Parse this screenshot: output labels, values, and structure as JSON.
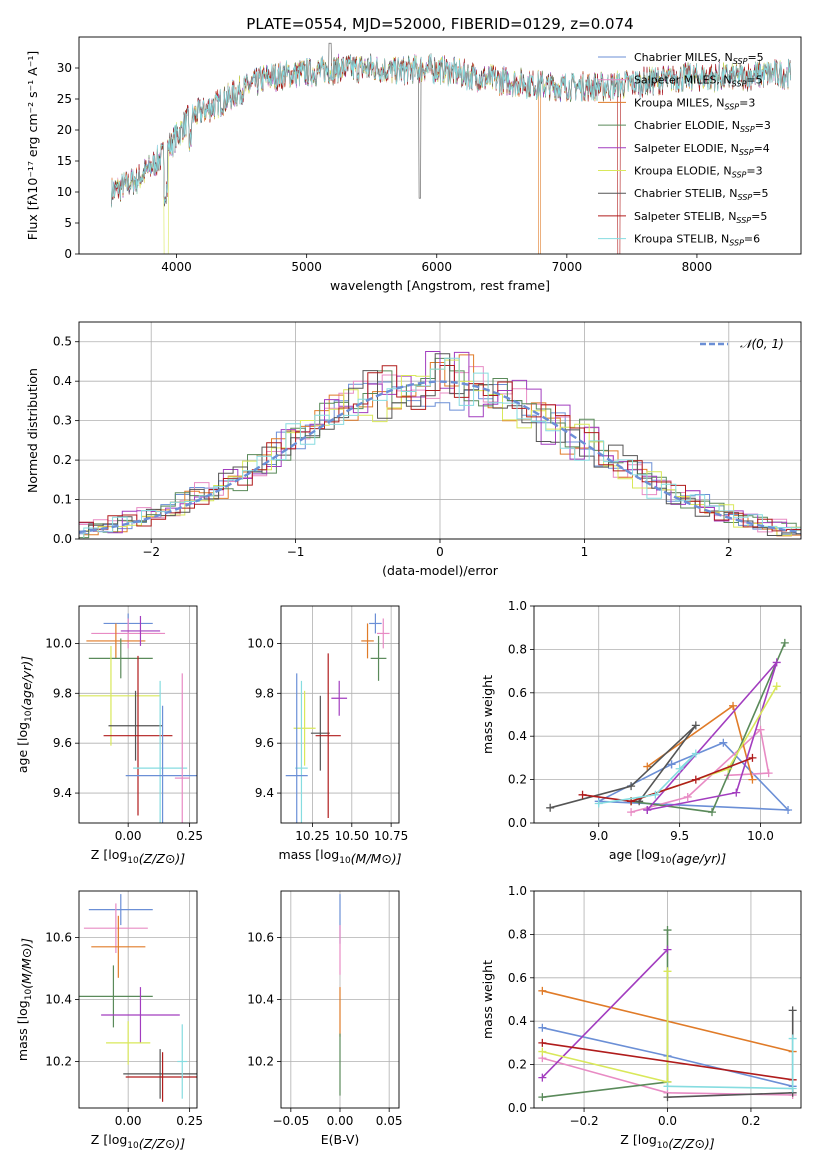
{
  "figure_title": "PLATE=0554, MJD=52000, FIBERID=0129, z=0.074",
  "colors": {
    "Chabrier MILES": "#6b8fd6",
    "Salpeter MILES": "#e88bc4",
    "Kroupa MILES": "#e07b28",
    "Chabrier ELODIE": "#5a8a5a",
    "Salpeter ELODIE": "#a23dbf",
    "Kroupa ELODIE": "#d9e85a",
    "Chabrier STELIB": "#555555",
    "Salpeter STELIB": "#b01c1c",
    "Kroupa STELIB": "#86dce0"
  },
  "chart_data": [
    {
      "id": "spectrum",
      "type": "line",
      "title": "",
      "xlabel": "wavelength [Angstrom, rest frame]",
      "ylabel": "Flux [fλ10⁻¹⁷ erg cm⁻² s⁻¹ A⁻¹]",
      "xlim": [
        3250,
        8800
      ],
      "ylim": [
        0,
        35
      ],
      "xticks": [
        4000,
        5000,
        6000,
        7000,
        8000
      ],
      "yticks": [
        0,
        5,
        10,
        15,
        20,
        25,
        30
      ],
      "grid": false,
      "legend": "top-right",
      "spectrum_envelope": {
        "x": [
          3500,
          3700,
          3900,
          4000,
          4100,
          4300,
          4500,
          4700,
          4900,
          5100,
          5300,
          5500,
          5700,
          5900,
          6100,
          6300,
          6500,
          6700,
          6900,
          7100,
          7300,
          7500,
          7700,
          7900,
          8100,
          8300,
          8500,
          8700
        ],
        "y": [
          10,
          12,
          16,
          19,
          22,
          24,
          26.5,
          28.5,
          29,
          29.5,
          30,
          30,
          29.5,
          30,
          29.5,
          28.5,
          28,
          27.5,
          27,
          27,
          27,
          27.5,
          28,
          28.5,
          28.5,
          28.5,
          29,
          29
        ]
      },
      "series": [
        {
          "name": "Chabrier MILES, N",
          "sub": "SSP",
          "suffix": "=5",
          "color": "#6b8fd6"
        },
        {
          "name": "Salpeter MILES, N",
          "sub": "SSP",
          "suffix": "=5",
          "color": "#e88bc4"
        },
        {
          "name": "Kroupa MILES, N",
          "sub": "SSP",
          "suffix": "=3",
          "color": "#e07b28"
        },
        {
          "name": "Chabrier ELODIE, N",
          "sub": "SSP",
          "suffix": "=3",
          "color": "#5a8a5a"
        },
        {
          "name": "Salpeter ELODIE, N",
          "sub": "SSP",
          "suffix": "=4",
          "color": "#a23dbf"
        },
        {
          "name": "Kroupa ELODIE, N",
          "sub": "SSP",
          "suffix": "=3",
          "color": "#d9e85a"
        },
        {
          "name": "Chabrier STELIB, N",
          "sub": "SSP",
          "suffix": "=5",
          "color": "#555555"
        },
        {
          "name": "Salpeter STELIB, N",
          "sub": "SSP",
          "suffix": "=5",
          "color": "#b01c1c"
        },
        {
          "name": "Kroupa STELIB, N",
          "sub": "SSP",
          "suffix": "=6",
          "color": "#86dce0"
        }
      ]
    },
    {
      "id": "residuals",
      "type": "line",
      "xlabel": "(data-model)/error",
      "ylabel": "Normed distribution",
      "xlim": [
        -2.5,
        2.5
      ],
      "ylim": [
        0,
        0.55
      ],
      "xticks": [
        -2,
        -1,
        0,
        1,
        2
      ],
      "yticks": [
        0.0,
        0.1,
        0.2,
        0.3,
        0.4,
        0.5
      ],
      "grid": true,
      "legend": "top-right",
      "legend_entry": "𝒩(0, 1)",
      "gaussian": {
        "mu": 0,
        "sigma": 1,
        "color": "#6b8fd6"
      },
      "histogram": {
        "bin_width": 0.1,
        "x_start": -2.5,
        "x_end": 2.5,
        "noise": 0.04
      }
    },
    {
      "id": "age-vs-Z",
      "type": "scatter",
      "xlabel": "Z [log10(Z/Z⊙)]",
      "ylabel": "age  [log10(age/yr)]",
      "xlim": [
        -0.2,
        0.28
      ],
      "ylim": [
        9.28,
        10.15
      ],
      "xticks": [
        0.0,
        0.25
      ],
      "yticks": [
        9.4,
        9.6,
        9.8,
        10.0
      ],
      "grid": true,
      "points": [
        {
          "x": 0.0,
          "y": 10.08,
          "xerr": 0.1,
          "yerr": 0.04
        },
        {
          "x": 0.0,
          "y": 10.04,
          "xerr": 0.15,
          "yerr": 0.06
        },
        {
          "x": -0.05,
          "y": 10.01,
          "xerr": 0.12,
          "yerr": 0.07
        },
        {
          "x": -0.03,
          "y": 9.94,
          "xerr": 0.13,
          "yerr": 0.08
        },
        {
          "x": 0.05,
          "y": 10.05,
          "xerr": 0.08,
          "yerr": 0.06
        },
        {
          "x": -0.07,
          "y": 9.79,
          "xerr": 0.2,
          "yerr": 0.2
        },
        {
          "x": 0.03,
          "y": 9.67,
          "xerr": 0.11,
          "yerr": 0.14
        },
        {
          "x": 0.04,
          "y": 9.63,
          "xerr": 0.14,
          "yerr": 0.32
        },
        {
          "x": 0.13,
          "y": 9.5,
          "xerr": 0.11,
          "yerr": 0.35
        },
        {
          "x": 0.14,
          "y": 9.47,
          "xerr": 0.15,
          "yerr": 0.28
        },
        {
          "x": 0.22,
          "y": 9.46,
          "xerr": 0.03,
          "yerr": 0.42
        }
      ]
    },
    {
      "id": "age-vs-mass",
      "type": "scatter",
      "xlabel": "mass [log10(M/M⊙)]",
      "ylabel": "",
      "xlim": [
        10.05,
        10.8
      ],
      "ylim": [
        9.28,
        10.15
      ],
      "xticks": [
        10.25,
        10.5,
        10.75
      ],
      "yticks": [
        9.4,
        9.6,
        9.8,
        10.0
      ],
      "grid": true,
      "points": [
        {
          "x": 10.65,
          "y": 10.08,
          "xerr": 0.04,
          "yerr": 0.04
        },
        {
          "x": 10.7,
          "y": 10.04,
          "xerr": 0.04,
          "yerr": 0.06
        },
        {
          "x": 10.6,
          "y": 10.01,
          "xerr": 0.04,
          "yerr": 0.07
        },
        {
          "x": 10.67,
          "y": 9.94,
          "xerr": 0.05,
          "yerr": 0.09
        },
        {
          "x": 10.42,
          "y": 9.78,
          "xerr": 0.05,
          "yerr": 0.07
        },
        {
          "x": 10.2,
          "y": 9.66,
          "xerr": 0.07,
          "yerr": 0.15
        },
        {
          "x": 10.3,
          "y": 9.64,
          "xerr": 0.06,
          "yerr": 0.15
        },
        {
          "x": 10.35,
          "y": 9.63,
          "xerr": 0.08,
          "yerr": 0.33
        },
        {
          "x": 10.18,
          "y": 9.5,
          "xerr": 0.04,
          "yerr": 0.35
        },
        {
          "x": 10.15,
          "y": 9.47,
          "xerr": 0.07,
          "yerr": 0.41
        }
      ]
    },
    {
      "id": "weight-vs-age",
      "type": "line",
      "xlabel": "age  [log10(age/yr)]",
      "ylabel": "mass weight",
      "xlim": [
        8.6,
        10.25
      ],
      "ylim": [
        0,
        1
      ],
      "xticks": [
        9.0,
        9.5,
        10.0
      ],
      "yticks": [
        0.0,
        0.2,
        0.4,
        0.6,
        0.8,
        1.0
      ],
      "grid": true,
      "series": [
        {
          "name": "Chabrier MILES",
          "x": [
            9.45,
            9.77,
            10.17,
            9.0,
            9.45
          ],
          "y": [
            0.27,
            0.37,
            0.06,
            0.1,
            0.27
          ]
        },
        {
          "name": "Salpeter MILES",
          "x": [
            9.2,
            9.55,
            10.0,
            10.05,
            9.8
          ],
          "y": [
            0.05,
            0.12,
            0.43,
            0.23,
            0.22
          ]
        },
        {
          "name": "Kroupa MILES",
          "x": [
            9.3,
            9.83,
            9.95
          ],
          "y": [
            0.26,
            0.54,
            0.2
          ]
        },
        {
          "name": "Chabrier ELODIE",
          "x": [
            9.2,
            9.7,
            10.15
          ],
          "y": [
            0.1,
            0.05,
            0.83
          ]
        },
        {
          "name": "Salpeter ELODIE",
          "x": [
            9.3,
            9.85,
            10.1,
            9.3
          ],
          "y": [
            0.06,
            0.14,
            0.74,
            0.06
          ]
        },
        {
          "name": "Kroupa ELODIE",
          "x": [
            9.2,
            9.8,
            10.1
          ],
          "y": [
            0.1,
            0.25,
            0.63
          ]
        },
        {
          "name": "Chabrier STELIB",
          "x": [
            8.7,
            9.2,
            9.6,
            9.25
          ],
          "y": [
            0.07,
            0.17,
            0.45,
            0.1
          ]
        },
        {
          "name": "Salpeter STELIB",
          "x": [
            8.9,
            9.2,
            9.6,
            9.95
          ],
          "y": [
            0.13,
            0.1,
            0.2,
            0.3
          ]
        },
        {
          "name": "Kroupa STELIB",
          "x": [
            9.0,
            9.35,
            9.6,
            9.5
          ],
          "y": [
            0.09,
            0.13,
            0.32,
            0.25
          ]
        }
      ]
    },
    {
      "id": "mass-vs-Z",
      "type": "scatter",
      "xlabel": "Z [log10(Z/Z⊙)]",
      "ylabel": "mass [log10(M/M⊙)]",
      "xlim": [
        -0.2,
        0.28
      ],
      "ylim": [
        10.05,
        10.75
      ],
      "xticks": [
        0.0,
        0.25
      ],
      "yticks": [
        10.2,
        10.4,
        10.6
      ],
      "grid": true,
      "points": [
        {
          "x": -0.03,
          "y": 10.69,
          "xerr": 0.13,
          "yerr": 0.05
        },
        {
          "x": -0.05,
          "y": 10.63,
          "xerr": 0.13,
          "yerr": 0.08
        },
        {
          "x": -0.04,
          "y": 10.57,
          "xerr": 0.11,
          "yerr": 0.1
        },
        {
          "x": -0.06,
          "y": 10.41,
          "xerr": 0.16,
          "yerr": 0.1
        },
        {
          "x": 0.05,
          "y": 10.35,
          "xerr": 0.16,
          "yerr": 0.09
        },
        {
          "x": 0.0,
          "y": 10.26,
          "xerr": 0.09,
          "yerr": 0.07
        },
        {
          "x": 0.13,
          "y": 10.16,
          "xerr": 0.15,
          "yerr": 0.08
        },
        {
          "x": 0.14,
          "y": 10.15,
          "xerr": 0.15,
          "yerr": 0.08
        },
        {
          "x": 0.22,
          "y": 10.2,
          "xerr": 0.02,
          "yerr": 0.12
        }
      ]
    },
    {
      "id": "mass-vs-EBV",
      "type": "scatter",
      "xlabel": "E(B-V)",
      "ylabel": "",
      "xlim": [
        -0.06,
        0.06
      ],
      "ylim": [
        10.05,
        10.75
      ],
      "xticks": [
        -0.05,
        0.0,
        0.05
      ],
      "yticks": [
        10.2,
        10.4,
        10.6
      ],
      "grid": true,
      "points": [
        {
          "x": 0.0,
          "y": 10.66,
          "yerr": 0.08
        },
        {
          "x": 0.0,
          "y": 10.56,
          "yerr": 0.08
        },
        {
          "x": 0.0,
          "y": 10.36,
          "yerr": 0.08
        },
        {
          "x": 0.0,
          "y": 10.19,
          "yerr": 0.1
        }
      ]
    },
    {
      "id": "weight-vs-Z",
      "type": "line",
      "xlabel": "Z [log10(Z/Z⊙)]",
      "ylabel": "mass weight",
      "xlim": [
        -0.32,
        0.32
      ],
      "ylim": [
        0,
        1
      ],
      "xticks": [
        -0.2,
        0.0,
        0.2
      ],
      "yticks": [
        0.0,
        0.2,
        0.4,
        0.6,
        0.8,
        1.0
      ],
      "grid": true,
      "series": [
        {
          "name": "Chabrier MILES",
          "x": [
            -0.3,
            0.0,
            0.3
          ],
          "y": [
            0.37,
            0.24,
            0.1
          ]
        },
        {
          "name": "Salpeter MILES",
          "x": [
            -0.3,
            0.0,
            0.3
          ],
          "y": [
            0.23,
            0.07,
            0.06
          ]
        },
        {
          "name": "Kroupa MILES",
          "x": [
            -0.3,
            0.3
          ],
          "y": [
            0.54,
            0.26
          ]
        },
        {
          "name": "Chabrier ELODIE",
          "x": [
            -0.3,
            0.0,
            0.0
          ],
          "y": [
            0.05,
            0.12,
            0.82
          ]
        },
        {
          "name": "Salpeter ELODIE",
          "x": [
            -0.3,
            0.0
          ],
          "y": [
            0.14,
            0.73
          ]
        },
        {
          "name": "Kroupa ELODIE",
          "x": [
            -0.3,
            0.0,
            0.0
          ],
          "y": [
            0.26,
            0.12,
            0.63
          ]
        },
        {
          "name": "Chabrier STELIB",
          "x": [
            0.0,
            0.3,
            0.3
          ],
          "y": [
            0.05,
            0.07,
            0.45
          ]
        },
        {
          "name": "Salpeter STELIB",
          "x": [
            -0.3,
            0.3
          ],
          "y": [
            0.3,
            0.13
          ]
        },
        {
          "name": "Kroupa STELIB",
          "x": [
            0.0,
            0.3,
            0.3
          ],
          "y": [
            0.1,
            0.09,
            0.32
          ]
        }
      ]
    }
  ]
}
